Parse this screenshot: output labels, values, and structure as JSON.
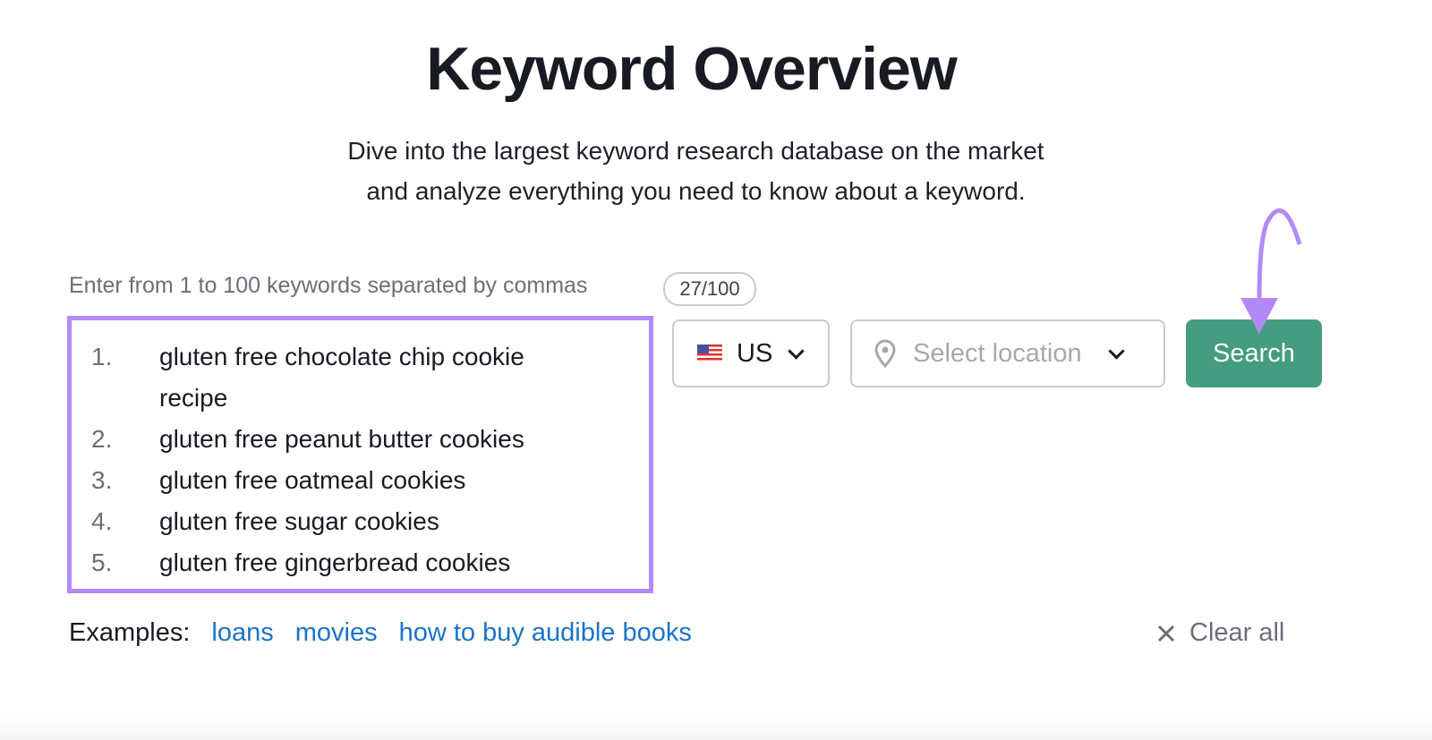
{
  "header": {
    "title": "Keyword Overview",
    "subtitle_line1": "Dive into the largest keyword research database on the market",
    "subtitle_line2": "and analyze everything you need to know about a keyword."
  },
  "input": {
    "hint": "Enter from 1 to 100 keywords separated by commas",
    "counter": "27/100",
    "keywords": [
      {
        "num": "1.",
        "line1": "gluten free chocolate chip cookie",
        "line2": "recipe"
      },
      {
        "num": "2.",
        "line1": "gluten free peanut butter cookies"
      },
      {
        "num": "3.",
        "line1": "gluten free oatmeal cookies"
      },
      {
        "num": "4.",
        "line1": "gluten free sugar cookies"
      },
      {
        "num": "5.",
        "line1": "gluten free gingerbread cookies"
      }
    ]
  },
  "country": {
    "value": "US",
    "icon": "us-flag-icon"
  },
  "location": {
    "placeholder": "Select location",
    "icon": "location-pin-icon"
  },
  "search_label": "Search",
  "examples": {
    "label": "Examples:",
    "links": [
      "loans",
      "movies",
      "how to buy audible books"
    ]
  },
  "clear_label": "Clear all",
  "colors": {
    "accent_green": "#459c80",
    "highlight_purple": "#b38af5",
    "link_blue": "#1a73c9"
  }
}
